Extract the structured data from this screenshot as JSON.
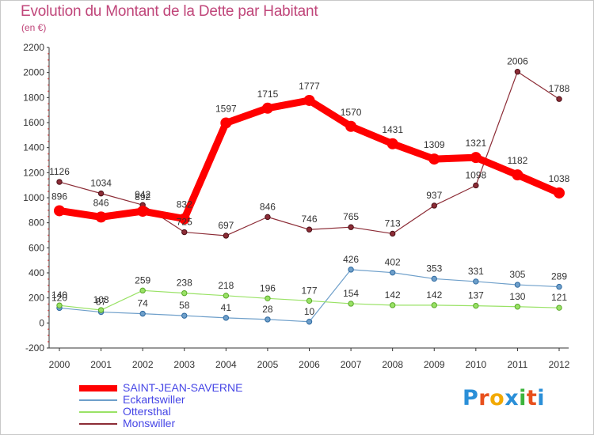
{
  "header": {
    "title": "Evolution du Montant de la Dette par Habitant",
    "subtitle": "(en €)"
  },
  "logo": {
    "text": "Proxiti",
    "colors": [
      "#2a8fd8",
      "#e8501d",
      "#f2a900",
      "#2a8fd8",
      "#3cb43c",
      "#e8501d",
      "#2a8fd8"
    ]
  },
  "chart_data": {
    "type": "line",
    "title": "Evolution du Montant de la Dette par Habitant",
    "subtitle": "(en €)",
    "xlabel": "",
    "ylabel": "",
    "categories": [
      "2000",
      "2001",
      "2002",
      "2003",
      "2004",
      "2005",
      "2006",
      "2007",
      "2008",
      "2009",
      "2010",
      "2011",
      "2012"
    ],
    "ylim": [
      -200,
      2200
    ],
    "yticks": [
      "-200",
      "0",
      "200",
      "400",
      "600",
      "800",
      "1000",
      "1200",
      "1400",
      "1600",
      "1800",
      "2000",
      "2200"
    ],
    "grid": false,
    "legend_position": "bottom-left",
    "series": [
      {
        "name": "SAINT-JEAN-SAVERNE",
        "color": "#ff0000",
        "values": [
          896,
          846,
          892,
          832,
          1597,
          1715,
          1777,
          1570,
          1431,
          1309,
          1321,
          1182,
          1038
        ]
      },
      {
        "name": "Eckartswiller",
        "color": "#6e9fca",
        "values": [
          120,
          87,
          74,
          58,
          41,
          28,
          10,
          426,
          402,
          353,
          331,
          305,
          289
        ]
      },
      {
        "name": "Ottersthal",
        "color": "#99e265",
        "values": [
          140,
          103,
          259,
          238,
          218,
          196,
          177,
          154,
          142,
          142,
          137,
          130,
          121
        ]
      },
      {
        "name": "Monswiller",
        "color": "#8c2c36",
        "values": [
          1126,
          1034,
          942,
          725,
          697,
          846,
          746,
          765,
          713,
          937,
          1098,
          2006,
          1788
        ]
      }
    ],
    "labels": {
      "SAINT-JEAN-SAVERNE": [
        "896",
        "846",
        "892",
        "832",
        "1597",
        "1715",
        "1777",
        "1570",
        "1431",
        "1309",
        "1321",
        "1182",
        "1038"
      ],
      "Eckartswiller": [
        "120",
        "87",
        "74",
        "58",
        "41",
        "28",
        "10",
        "426",
        "402",
        "353",
        "331",
        "305",
        "289"
      ],
      "Ottersthal": [
        "140",
        "103",
        "259",
        "238",
        "218",
        "196",
        "177",
        "154",
        "142",
        "142",
        "137",
        "130",
        "121"
      ],
      "Monswiller": [
        "1126",
        "1034",
        "942",
        "725",
        "697",
        "846",
        "746",
        "765",
        "713",
        "937",
        "1098",
        "2006",
        "1788"
      ]
    }
  }
}
